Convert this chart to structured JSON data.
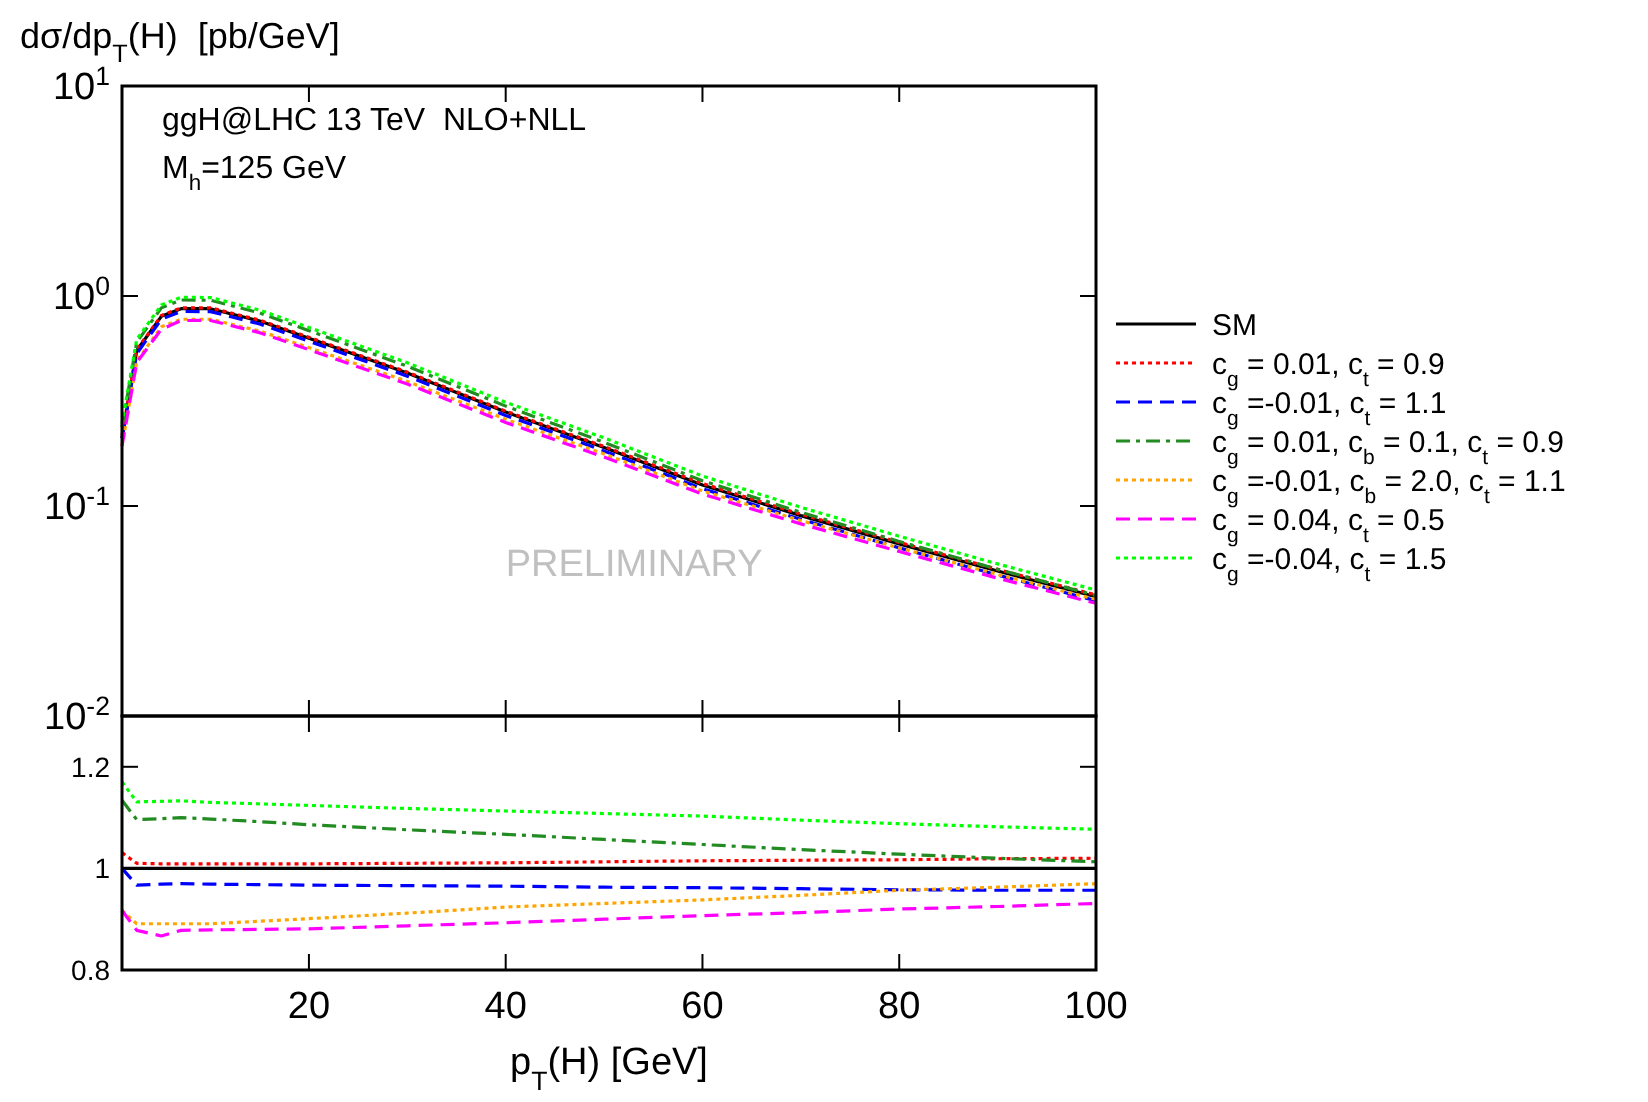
{
  "chart_data": [
    {
      "type": "line",
      "ylabel": "dσ/dp$_{T}$(H)  [pb/GeV]",
      "annotations": [
        "ggH@LHC 13 TeV  NLO+NLL",
        "M$_{h}$=125 GeV",
        "PRELIMINARY"
      ],
      "log": "y",
      "xlim": [
        1,
        100
      ],
      "xticks": [
        20,
        40,
        60,
        80,
        100
      ],
      "ylim": [
        0.01,
        10
      ],
      "yticks": [
        {
          "value": 0.01,
          "label": "10$^{-2}$"
        },
        {
          "value": 0.1,
          "label": "10$^{-1}$"
        },
        {
          "value": 1,
          "label": "10$^{0}$"
        },
        {
          "value": 10,
          "label": "10$^{1}$"
        }
      ],
      "tick_labels": "y",
      "legend": "right",
      "grid": false,
      "x": [
        1,
        2.5,
        5,
        7,
        10,
        15,
        20,
        30,
        40,
        50,
        60,
        70,
        80,
        90,
        100
      ],
      "series": [
        {
          "name": "SM",
          "color": "#000000",
          "line_style": "solid",
          "values": [
            0.21,
            0.55,
            0.8,
            0.87,
            0.87,
            0.76,
            0.63,
            0.43,
            0.28,
            0.19,
            0.126,
            0.09,
            0.066,
            0.049,
            0.037
          ]
        },
        {
          "name": "c$_{g}$ = 0.01, c$_{t}$ = 0.9",
          "color": "#ff0000",
          "line_style": "dotted",
          "values": [
            0.217,
            0.556,
            0.807,
            0.878,
            0.878,
            0.767,
            0.636,
            0.434,
            0.283,
            0.192,
            0.128,
            0.0914,
            0.0671,
            0.0499,
            0.0377
          ]
        },
        {
          "name": "c$_{g}$ =-0.01, c$_{t}$ = 1.1",
          "color": "#0000ff",
          "line_style": "dashed",
          "values": [
            0.21,
            0.532,
            0.775,
            0.844,
            0.843,
            0.736,
            0.609,
            0.415,
            0.27,
            0.183,
            0.121,
            0.0864,
            0.0632,
            0.0469,
            0.0354
          ]
        },
        {
          "name": "c$_{g}$ = 0.01, c$_{b}$ = 0.1, c$_{t}$ = 0.9",
          "color": "#228b22",
          "line_style": "dashdot",
          "values": [
            0.238,
            0.603,
            0.878,
            0.957,
            0.954,
            0.83,
            0.684,
            0.463,
            0.299,
            0.201,
            0.132,
            0.0933,
            0.0678,
            0.05,
            0.0375
          ]
        },
        {
          "name": "c$_{g}$ =-0.01, c$_{b}$ = 2.0, c$_{t}$ = 1.1",
          "color": "#ffa500",
          "line_style": "dotted",
          "values": [
            0.193,
            0.49,
            0.713,
            0.775,
            0.775,
            0.681,
            0.568,
            0.392,
            0.259,
            0.177,
            0.118,
            0.0852,
            0.0632,
            0.0472,
            0.0359
          ]
        },
        {
          "name": "c$_{g}$ = 0.04, c$_{t}$ = 0.5",
          "color": "#ff00ff",
          "line_style": "dashed",
          "values": [
            0.193,
            0.483,
            0.694,
            0.764,
            0.765,
            0.669,
            0.555,
            0.381,
            0.25,
            0.171,
            0.114,
            0.0822,
            0.0607,
            0.0453,
            0.0344
          ]
        },
        {
          "name": "c$_{g}$ =-0.04, c$_{t}$ = 1.5",
          "color": "#00ff00",
          "line_style": "dotted",
          "values": [
            0.246,
            0.622,
            0.906,
            0.986,
            0.983,
            0.857,
            0.708,
            0.481,
            0.312,
            0.211,
            0.139,
            0.0986,
            0.0718,
            0.053,
            0.0398
          ]
        }
      ]
    },
    {
      "type": "line",
      "xlabel": "p$_{T}$(H) [GeV]",
      "xlim": [
        1,
        100
      ],
      "xticks": [
        20,
        40,
        60,
        80,
        100
      ],
      "ylim": [
        0.8,
        1.3
      ],
      "yticks": [
        0.8,
        1,
        1.2
      ],
      "grid": false,
      "x": [
        1,
        2.5,
        5,
        7,
        10,
        15,
        20,
        30,
        40,
        50,
        60,
        70,
        80,
        90,
        100
      ],
      "series": [
        {
          "color": "#000000",
          "line_style": "solid",
          "values": [
            1,
            1,
            1,
            1,
            1,
            1,
            1,
            1,
            1,
            1,
            1,
            1,
            1,
            1,
            1
          ]
        },
        {
          "color": "#ff0000",
          "line_style": "dotted",
          "values": [
            1.031,
            1.01,
            1.009,
            1.009,
            1.009,
            1.009,
            1.009,
            1.01,
            1.011,
            1.013,
            1.015,
            1.016,
            1.017,
            1.019,
            1.02
          ]
        },
        {
          "color": "#0000ff",
          "line_style": "dashed",
          "values": [
            1,
            0.967,
            0.969,
            0.97,
            0.969,
            0.968,
            0.967,
            0.966,
            0.965,
            0.963,
            0.962,
            0.96,
            0.958,
            0.957,
            0.957
          ]
        },
        {
          "color": "#228b22",
          "line_style": "dashdot",
          "values": [
            1.134,
            1.096,
            1.098,
            1.1,
            1.097,
            1.092,
            1.086,
            1.076,
            1.067,
            1.057,
            1.047,
            1.037,
            1.028,
            1.02,
            1.013
          ]
        },
        {
          "color": "#ffa500",
          "line_style": "dotted",
          "values": [
            0.917,
            0.891,
            0.891,
            0.891,
            0.891,
            0.896,
            0.901,
            0.912,
            0.924,
            0.931,
            0.938,
            0.947,
            0.957,
            0.963,
            0.97
          ]
        },
        {
          "color": "#ff00ff",
          "line_style": "dashed",
          "values": [
            0.917,
            0.878,
            0.867,
            0.878,
            0.879,
            0.88,
            0.881,
            0.887,
            0.893,
            0.9,
            0.907,
            0.913,
            0.92,
            0.925,
            0.931
          ]
        },
        {
          "color": "#00ff00",
          "line_style": "dotted",
          "values": [
            1.17,
            1.131,
            1.132,
            1.133,
            1.13,
            1.127,
            1.124,
            1.118,
            1.113,
            1.108,
            1.103,
            1.095,
            1.088,
            1.082,
            1.077
          ]
        }
      ]
    }
  ]
}
